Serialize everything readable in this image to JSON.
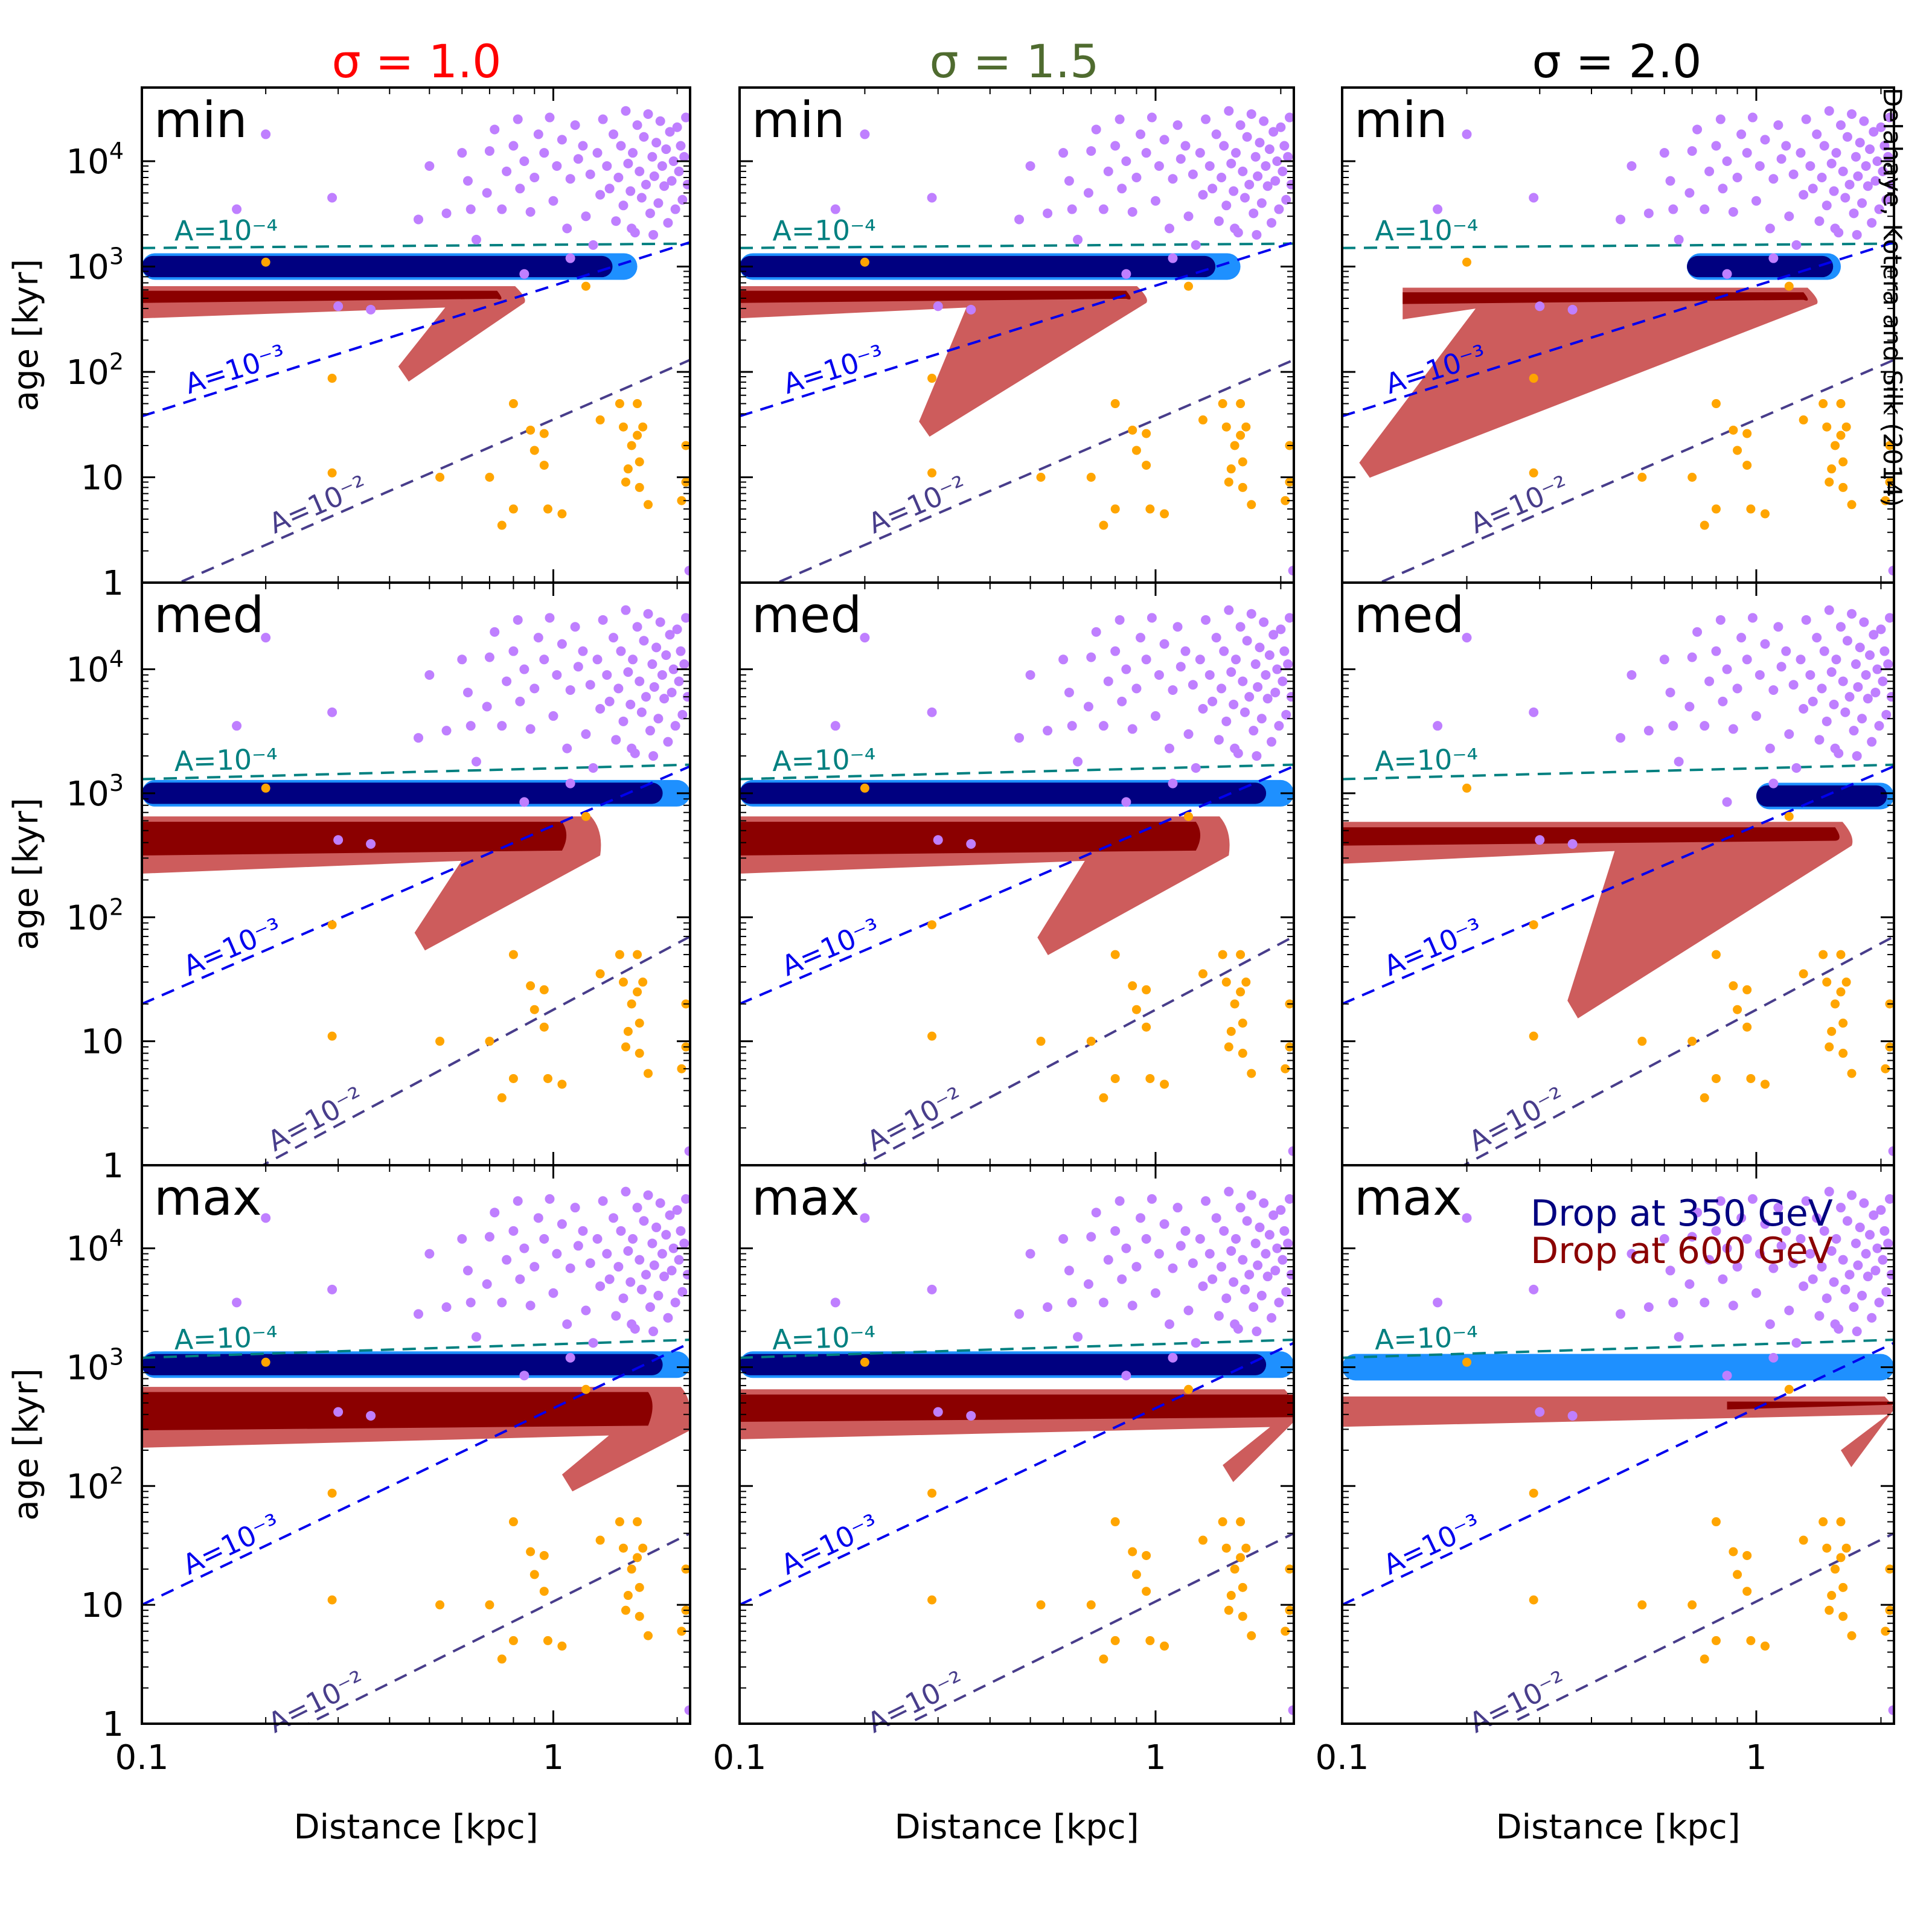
{
  "credit": "Delahaye, Kotera and Silk (2014)",
  "columns": [
    {
      "label": "σ = 1.0",
      "color": "#ff0000"
    },
    {
      "label": "σ = 1.5",
      "color": "#4f6b2f"
    },
    {
      "label": "σ = 2.0",
      "color": "#000000"
    }
  ],
  "rows": [
    "min",
    "med",
    "max"
  ],
  "legend": [
    {
      "label": "Drop at 350 GeV",
      "color": "#000080"
    },
    {
      "label": "Drop at 600 GeV",
      "color": "#8b0000"
    }
  ],
  "colors": {
    "dark_blue": "#000080",
    "light_blue": "#1e90ff",
    "dark_red": "#8b0000",
    "light_red": "#cd5c5c",
    "pulsars": "#bf7fff",
    "snr": "#ffa500",
    "line_1e-4": "#008080",
    "line_1e-3": "#0000ee",
    "line_1e-2": "#483d8b"
  },
  "chart_data": {
    "type": "scatter",
    "layout": "3x3 grid",
    "xlabel": "Distance [kpc]",
    "ylabel": "age [kyr]",
    "x_scale": "log",
    "y_scale": "log",
    "xlim": [
      0.1,
      2.15
    ],
    "ylim": [
      1,
      50000
    ],
    "x_ticks": [
      {
        "v": 0.1,
        "label": "0.1"
      },
      {
        "v": 1,
        "label": "1"
      }
    ],
    "y_ticks": [
      {
        "v": 1,
        "label": "1",
        "sup": ""
      },
      {
        "v": 10,
        "label": "10",
        "sup": ""
      },
      {
        "v": 100,
        "label": "10",
        "sup": "2"
      },
      {
        "v": 1000,
        "label": "10",
        "sup": "3"
      },
      {
        "v": 10000,
        "label": "10",
        "sup": "4"
      }
    ],
    "iso_lines": [
      {
        "name": "A=10⁻⁴",
        "color": "#008080",
        "label_x": 0.12
      },
      {
        "name": "A=10⁻³",
        "color": "#0000ee",
        "label_x": 0.13
      },
      {
        "name": "A=10⁻²",
        "color": "#483d8b",
        "label_x": 0.21
      }
    ],
    "panels": [
      {
        "row": "min",
        "sigma": 1.0,
        "iso": [
          {
            "y1": 1500,
            "y2": 1650
          },
          {
            "y1": 38,
            "y2": 1700
          },
          {
            "y1": 0.7,
            "y2": 130
          }
        ],
        "blue_band": {
          "x1": 0.1,
          "x2": 1.6,
          "age": 1000,
          "light_tail": true
        },
        "red_fan": {
          "x1": 0.1,
          "x2": 0.85,
          "core_top": 620,
          "core_bot": 430,
          "tip_x": 0.42,
          "tip_y": 90,
          "dark_x2": 0.73
        }
      },
      {
        "row": "min",
        "sigma": 1.5,
        "iso": [
          {
            "y1": 1500,
            "y2": 1650
          },
          {
            "y1": 38,
            "y2": 1700
          },
          {
            "y1": 0.7,
            "y2": 130
          }
        ],
        "blue_band": {
          "x1": 0.1,
          "x2": 1.6,
          "age": 1000,
          "light_tail": true
        },
        "red_fan": {
          "x1": 0.1,
          "x2": 0.95,
          "core_top": 620,
          "core_bot": 430,
          "tip_x": 0.27,
          "tip_y": 27,
          "dark_x2": 0.85
        }
      },
      {
        "row": "min",
        "sigma": 2.0,
        "iso": [
          {
            "y1": 1500,
            "y2": 1650
          },
          {
            "y1": 38,
            "y2": 1700
          },
          {
            "y1": 0.7,
            "y2": 130
          }
        ],
        "blue_band": {
          "x1": 0.68,
          "x2": 1.6,
          "age": 1000,
          "light_tail": true
        },
        "red_fan": {
          "x1": 0.14,
          "x2": 1.4,
          "core_top": 600,
          "core_bot": 420,
          "tip_x": 0.11,
          "tip_y": 11,
          "dark_x2": 1.3
        }
      },
      {
        "row": "med",
        "sigma": 1.0,
        "iso": [
          {
            "y1": 1300,
            "y2": 1700
          },
          {
            "y1": 20,
            "y2": 1650
          },
          {
            "y1": 0.3,
            "y2": 70
          }
        ],
        "blue_band": {
          "x1": 0.1,
          "x2": 2.15,
          "age": 1000,
          "light_tail": true
        },
        "red_fan": {
          "x1": 0.1,
          "x2": 1.3,
          "core_top": 620,
          "core_bot": 300,
          "tip_x": 0.46,
          "tip_y": 60,
          "dark_x2": 1.05
        }
      },
      {
        "row": "med",
        "sigma": 1.5,
        "iso": [
          {
            "y1": 1300,
            "y2": 1700
          },
          {
            "y1": 20,
            "y2": 1650
          },
          {
            "y1": 0.3,
            "y2": 70
          }
        ],
        "blue_band": {
          "x1": 0.1,
          "x2": 2.15,
          "age": 1000,
          "light_tail": true
        },
        "red_fan": {
          "x1": 0.1,
          "x2": 1.5,
          "core_top": 620,
          "core_bot": 300,
          "tip_x": 0.52,
          "tip_y": 55,
          "dark_x2": 1.25
        }
      },
      {
        "row": "med",
        "sigma": 2.0,
        "iso": [
          {
            "y1": 1300,
            "y2": 1700
          },
          {
            "y1": 20,
            "y2": 1650
          },
          {
            "y1": 0.3,
            "y2": 70
          }
        ],
        "blue_band": {
          "x1": 1.0,
          "x2": 2.15,
          "age": 950,
          "light_tail": true
        },
        "red_fan": {
          "x1": 0.1,
          "x2": 1.7,
          "core_top": 560,
          "core_bot": 360,
          "tip_x": 0.35,
          "tip_y": 17,
          "dark_x2": 1.55
        }
      },
      {
        "row": "max",
        "sigma": 1.0,
        "iso": [
          {
            "y1": 1200,
            "y2": 1700
          },
          {
            "y1": 10,
            "y2": 1600
          },
          {
            "y1": 0.2,
            "y2": 40
          }
        ],
        "blue_band": {
          "x1": 0.1,
          "x2": 2.15,
          "age": 1050,
          "light_tail": true
        },
        "red_fan": {
          "x1": 0.1,
          "x2": 2.15,
          "core_top": 650,
          "core_bot": 280,
          "tip_x": 1.05,
          "tip_y": 100,
          "dark_x2": 1.7
        }
      },
      {
        "row": "max",
        "sigma": 1.5,
        "iso": [
          {
            "y1": 1200,
            "y2": 1700
          },
          {
            "y1": 10,
            "y2": 1600
          },
          {
            "y1": 0.2,
            "y2": 40
          }
        ],
        "blue_band": {
          "x1": 0.1,
          "x2": 2.15,
          "age": 1050,
          "light_tail": true
        },
        "red_fan": {
          "x1": 0.1,
          "x2": 2.15,
          "core_top": 620,
          "core_bot": 330,
          "tip_x": 1.45,
          "tip_y": 120,
          "dark_x2": 2.15
        }
      },
      {
        "row": "max",
        "sigma": 2.0,
        "iso": [
          {
            "y1": 1200,
            "y2": 1700
          },
          {
            "y1": 10,
            "y2": 1600
          },
          {
            "y1": 0.2,
            "y2": 40
          }
        ],
        "blue_band": {
          "x1": 0.1,
          "x2": 2.15,
          "age": 1000,
          "light_only": true
        },
        "red_fan": {
          "x1": 0.1,
          "x2": 2.15,
          "core_top": 540,
          "core_bot": 420,
          "tip_x": 1.6,
          "tip_y": 160,
          "dark_x2": 2.15,
          "dark_x1": 0.85
        }
      }
    ],
    "pulsars": [
      [
        0.2,
        18000
      ],
      [
        0.29,
        4500
      ],
      [
        0.17,
        3500
      ],
      [
        0.47,
        2800
      ],
      [
        0.5,
        9000
      ],
      [
        0.55,
        3200
      ],
      [
        0.63,
        3500
      ],
      [
        0.62,
        6500
      ],
      [
        0.65,
        1800
      ],
      [
        0.69,
        5000
      ],
      [
        0.72,
        20000
      ],
      [
        0.6,
        12000
      ],
      [
        0.75,
        3500
      ],
      [
        0.77,
        8000
      ],
      [
        0.8,
        14000
      ],
      [
        0.82,
        25000
      ],
      [
        0.83,
        5500
      ],
      [
        0.85,
        10000
      ],
      [
        0.88,
        3300
      ],
      [
        0.9,
        7000
      ],
      [
        0.92,
        18000
      ],
      [
        0.95,
        12000
      ],
      [
        0.98,
        26000
      ],
      [
        1.0,
        4200
      ],
      [
        1.02,
        9000
      ],
      [
        1.05,
        16000
      ],
      [
        1.08,
        2300
      ],
      [
        1.1,
        6800
      ],
      [
        1.13,
        22000
      ],
      [
        1.15,
        10500
      ],
      [
        1.18,
        14000
      ],
      [
        1.2,
        3000
      ],
      [
        1.23,
        7500
      ],
      [
        1.25,
        1600
      ],
      [
        1.28,
        12000
      ],
      [
        1.3,
        4800
      ],
      [
        1.32,
        25000
      ],
      [
        1.35,
        9000
      ],
      [
        1.37,
        5500
      ],
      [
        1.4,
        18000
      ],
      [
        1.42,
        2700
      ],
      [
        1.44,
        7000
      ],
      [
        1.46,
        14000
      ],
      [
        1.48,
        3800
      ],
      [
        1.5,
        30000
      ],
      [
        1.52,
        9500
      ],
      [
        1.54,
        5200
      ],
      [
        1.56,
        12000
      ],
      [
        1.58,
        2100
      ],
      [
        1.6,
        22000
      ],
      [
        1.62,
        8000
      ],
      [
        1.64,
        4500
      ],
      [
        1.66,
        17000
      ],
      [
        1.68,
        6000
      ],
      [
        1.7,
        28000
      ],
      [
        1.72,
        3200
      ],
      [
        1.74,
        11000
      ],
      [
        1.76,
        7200
      ],
      [
        1.78,
        15000
      ],
      [
        1.8,
        4000
      ],
      [
        1.82,
        24000
      ],
      [
        1.84,
        9000
      ],
      [
        1.86,
        5800
      ],
      [
        1.88,
        13000
      ],
      [
        1.9,
        2600
      ],
      [
        1.92,
        19000
      ],
      [
        1.94,
        6500
      ],
      [
        1.96,
        10000
      ],
      [
        1.98,
        3500
      ],
      [
        2.0,
        21000
      ],
      [
        2.02,
        8000
      ],
      [
        2.04,
        14000
      ],
      [
        2.06,
        4300
      ],
      [
        2.08,
        11000
      ],
      [
        2.1,
        26000
      ],
      [
        2.12,
        6000
      ],
      [
        2.14,
        1.3
      ],
      [
        0.36,
        390
      ],
      [
        0.3,
        420
      ],
      [
        0.7,
        12500
      ],
      [
        1.1,
        1200
      ],
      [
        0.85,
        850
      ],
      [
        1.55,
        2300
      ],
      [
        1.75,
        2000
      ]
    ],
    "snr": [
      [
        0.2,
        1100
      ],
      [
        0.29,
        87
      ],
      [
        0.29,
        11
      ],
      [
        0.53,
        10
      ],
      [
        0.8,
        5
      ],
      [
        0.75,
        3.5
      ],
      [
        0.8,
        50
      ],
      [
        0.88,
        28
      ],
      [
        0.95,
        26
      ],
      [
        0.95,
        13
      ],
      [
        0.9,
        18
      ],
      [
        0.97,
        5
      ],
      [
        1.05,
        4.5
      ],
      [
        1.2,
        650
      ],
      [
        1.3,
        35
      ],
      [
        1.45,
        50
      ],
      [
        1.48,
        30
      ],
      [
        1.55,
        20
      ],
      [
        1.6,
        50
      ],
      [
        1.6,
        25
      ],
      [
        1.62,
        14
      ],
      [
        1.5,
        9
      ],
      [
        1.52,
        12
      ],
      [
        1.7,
        5.5
      ],
      [
        1.62,
        8
      ],
      [
        2.1,
        20
      ],
      [
        2.1,
        9
      ],
      [
        2.05,
        6
      ],
      [
        1.65,
        30
      ],
      [
        0.7,
        10
      ]
    ]
  }
}
